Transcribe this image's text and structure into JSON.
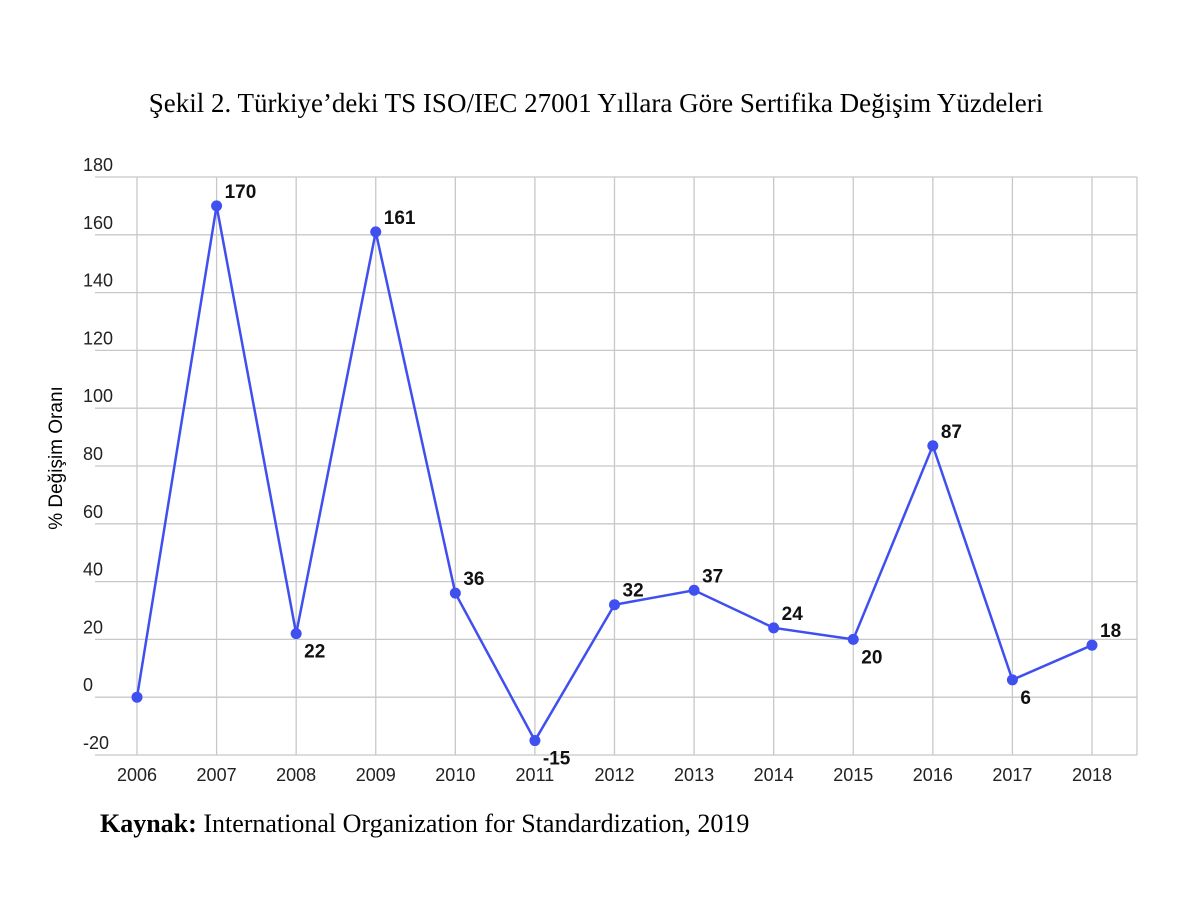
{
  "chart_data": {
    "type": "line",
    "title": "Şekil 2. Türkiye’deki TS ISO/IEC 27001 Yıllara Göre Sertifika Değişim Yüzdeleri",
    "y_label": "% Değişim Oranı",
    "source_label": "Kaynak:",
    "source_text": "International Organization for Standardization, 2019",
    "categories": [
      "2006",
      "2007",
      "2008",
      "2009",
      "2010",
      "2011",
      "2012",
      "2013",
      "2014",
      "2015",
      "2016",
      "2017",
      "2018"
    ],
    "values": [
      0,
      170,
      22,
      161,
      36,
      -15,
      32,
      37,
      24,
      20,
      87,
      6,
      18
    ],
    "value_labels": [
      null,
      "170",
      "22",
      "161",
      "36",
      "-15",
      "32",
      "37",
      "24",
      "20",
      "87",
      "6",
      "18"
    ],
    "color": "#3f4ff0",
    "ylim": [
      -20,
      180
    ],
    "yticks": [
      -20,
      0,
      20,
      40,
      60,
      80,
      100,
      120,
      140,
      160,
      180
    ],
    "grid": true
  }
}
